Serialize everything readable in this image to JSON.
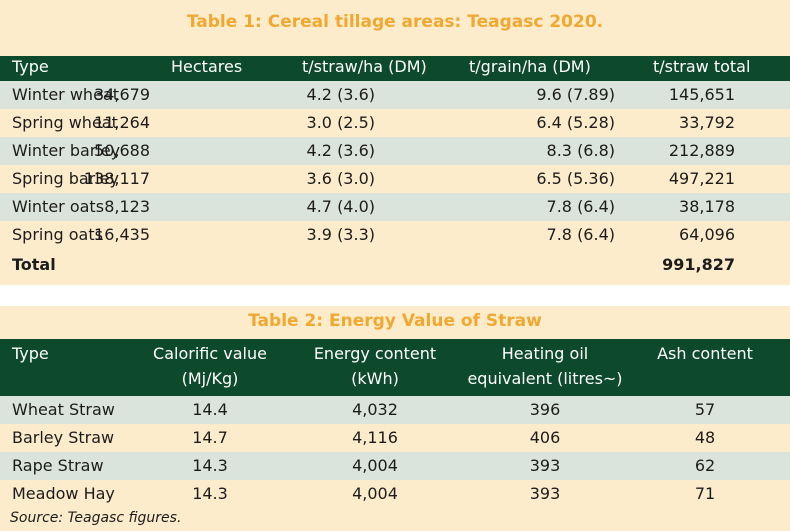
{
  "table1": {
    "title": "Table 1: Cereal tillage areas: Teagasc 2020.",
    "headers": [
      "Type",
      "Hectares",
      "t/straw/ha (DM)",
      "t/grain/ha (DM)",
      "t/straw total"
    ],
    "rows": [
      [
        "Winter wheat",
        "34,679",
        "4.2 (3.6)",
        "9.6 (7.89)",
        "145,651"
      ],
      [
        "Spring wheat",
        "11,264",
        "3.0 (2.5)",
        "6.4 (5.28)",
        "33,792"
      ],
      [
        "Winter barley",
        "50,688",
        "4.2 (3.6)",
        "8.3 (6.8)",
        "212,889"
      ],
      [
        "Spring barley",
        "138,117",
        "3.6 (3.0)",
        "6.5 (5.36)",
        "497,221"
      ],
      [
        "Winter oats",
        "8,123",
        "4.7 (4.0)",
        "7.8 (6.4)",
        "38,178"
      ],
      [
        "Spring oats",
        "16,435",
        "3.9 (3.3)",
        "7.8 (6.4)",
        "64,096"
      ]
    ],
    "total_label": "Total",
    "total_value": "991,827"
  },
  "table2": {
    "title": "Table 2: Energy Value of Straw",
    "headers": [
      {
        "line1": "Type",
        "line2": ""
      },
      {
        "line1": "Calorific value",
        "line2": "(Mj/Kg)"
      },
      {
        "line1": "Energy content",
        "line2": "(kWh)"
      },
      {
        "line1": "Heating oil",
        "line2": "equivalent (litres~)"
      },
      {
        "line1": "Ash content",
        "line2": ""
      }
    ],
    "rows": [
      [
        "Wheat Straw",
        "14.4",
        "4,032",
        "396",
        "57"
      ],
      [
        "Barley Straw",
        "14.7",
        "4,116",
        "406",
        "48"
      ],
      [
        "Rape Straw",
        "14.3",
        "4,004",
        "393",
        "62"
      ],
      [
        "Meadow Hay",
        "14.3",
        "4,004",
        "393",
        "71"
      ]
    ],
    "source": "Source: Teagasc figures."
  },
  "colors": {
    "panel_bg": "#fdeccb",
    "header_bg": "#0d4a2b",
    "title_color": "#f0a830",
    "alt_row_bg": "#dbe4dc"
  }
}
